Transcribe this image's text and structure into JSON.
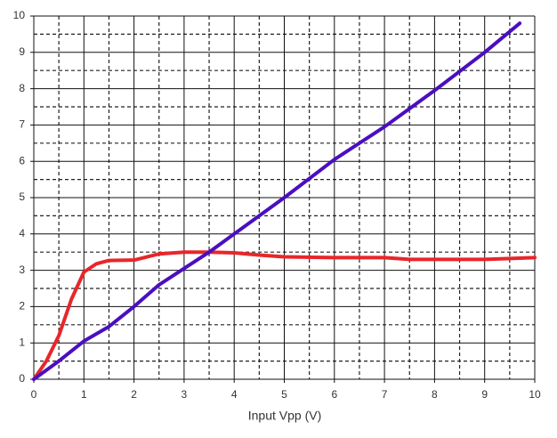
{
  "chart_data": {
    "type": "line",
    "x_label": "Input Vpp (V)",
    "xlim": [
      0,
      10
    ],
    "ylim": [
      0,
      10
    ],
    "xticks": [
      0,
      1,
      2,
      3,
      4,
      5,
      6,
      7,
      8,
      9,
      10
    ],
    "yticks": [
      0,
      1,
      2,
      3,
      4,
      5,
      6,
      7,
      8,
      9,
      10
    ],
    "minor_xticks": [
      0.5,
      1.5,
      2.5,
      3.5,
      4.5,
      5.5,
      6.5,
      7.5,
      8.5,
      9.5
    ],
    "minor_yticks": [
      0.5,
      1.5,
      2.5,
      3.5,
      4.5,
      5.5,
      6.5,
      7.5,
      8.5,
      9.5
    ],
    "grid": true,
    "series": [
      {
        "color": "#e8262a",
        "x": [
          0,
          0.25,
          0.5,
          0.75,
          1,
          1.25,
          1.5,
          2,
          2.5,
          3,
          3.5,
          4,
          4.5,
          5,
          6,
          7,
          7.5,
          8,
          9,
          10
        ],
        "values": [
          0,
          0.5,
          1.2,
          2.2,
          2.95,
          3.18,
          3.27,
          3.28,
          3.45,
          3.5,
          3.5,
          3.48,
          3.42,
          3.37,
          3.35,
          3.35,
          3.3,
          3.3,
          3.3,
          3.35
        ]
      },
      {
        "color": "#4a0fc0",
        "x": [
          0,
          0.5,
          1,
          1.5,
          2,
          2.5,
          3,
          3.5,
          4,
          5,
          6,
          7,
          8,
          9,
          9.7
        ],
        "values": [
          0,
          0.5,
          1.05,
          1.45,
          2.0,
          2.6,
          3.05,
          3.5,
          4.0,
          5.0,
          6.05,
          6.95,
          7.95,
          9.0,
          9.8
        ]
      }
    ]
  }
}
